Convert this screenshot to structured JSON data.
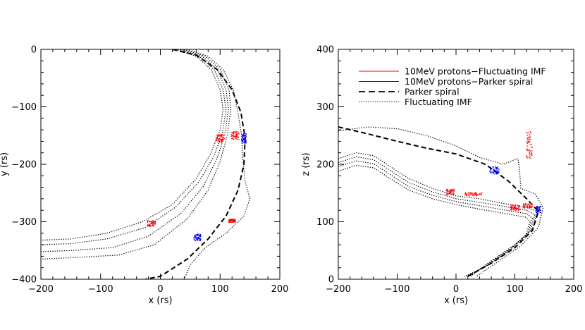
{
  "chart_data": [
    {
      "type": "line",
      "panel": "left",
      "xlabel": "x (rs)",
      "ylabel": "y (rs)",
      "xlim": [
        -200,
        200
      ],
      "ylim": [
        -400,
        0
      ],
      "xticks": [
        -200,
        -100,
        0,
        100,
        200
      ],
      "yticks": [
        -400,
        -300,
        -200,
        -100,
        0
      ],
      "xticks_text": [
        "−200",
        "−100",
        "0",
        "100",
        "200"
      ],
      "yticks_text": [
        "−400",
        "−300",
        "−200",
        "−100",
        "0"
      ],
      "series": [
        {
          "name": "Parker spiral",
          "style": "dashed",
          "color": "#000000",
          "points": [
            [
              20,
              0
            ],
            [
              60,
              -10
            ],
            [
              95,
              -35
            ],
            [
              120,
              -70
            ],
            [
              135,
              -110
            ],
            [
              142,
              -155
            ],
            [
              140,
              -200
            ],
            [
              130,
              -245
            ],
            [
              110,
              -290
            ],
            [
              80,
              -330
            ],
            [
              45,
              -365
            ],
            [
              0,
              -395
            ],
            [
              -25,
              -400
            ]
          ]
        },
        {
          "name": "Fluctuating IMF",
          "style": "dotted",
          "color": "#000000",
          "points": [
            [
              25,
              0
            ],
            [
              60,
              -12
            ],
            [
              85,
              -35
            ],
            [
              100,
              -70
            ],
            [
              105,
              -105
            ],
            [
              100,
              -140
            ],
            [
              85,
              -180
            ],
            [
              60,
              -225
            ],
            [
              20,
              -270
            ],
            [
              -30,
              -300
            ],
            [
              -90,
              -320
            ],
            [
              -150,
              -330
            ],
            [
              -200,
              -332
            ]
          ]
        },
        {
          "name": "Fluctuating IMF",
          "style": "dotted",
          "color": "#000000",
          "points": [
            [
              30,
              0
            ],
            [
              65,
              -12
            ],
            [
              90,
              -35
            ],
            [
              105,
              -70
            ],
            [
              110,
              -105
            ],
            [
              104,
              -145
            ],
            [
              90,
              -185
            ],
            [
              65,
              -230
            ],
            [
              25,
              -275
            ],
            [
              -25,
              -310
            ],
            [
              -90,
              -330
            ],
            [
              -150,
              -338
            ],
            [
              -200,
              -340
            ]
          ]
        },
        {
          "name": "Fluctuating IMF",
          "style": "dotted",
          "color": "#000000",
          "points": [
            [
              35,
              0
            ],
            [
              70,
              -12
            ],
            [
              95,
              -35
            ],
            [
              110,
              -70
            ],
            [
              114,
              -105
            ],
            [
              108,
              -148
            ],
            [
              95,
              -190
            ],
            [
              72,
              -238
            ],
            [
              35,
              -285
            ],
            [
              -20,
              -325
            ],
            [
              -80,
              -345
            ],
            [
              -150,
              -350
            ],
            [
              -200,
              -352
            ]
          ]
        },
        {
          "name": "Fluctuating IMF",
          "style": "dotted",
          "color": "#000000",
          "points": [
            [
              40,
              0
            ],
            [
              75,
              -12
            ],
            [
              100,
              -35
            ],
            [
              115,
              -70
            ],
            [
              118,
              -105
            ],
            [
              112,
              -150
            ],
            [
              100,
              -195
            ],
            [
              80,
              -245
            ],
            [
              45,
              -295
            ],
            [
              -10,
              -340
            ],
            [
              -70,
              -358
            ],
            [
              -140,
              -362
            ],
            [
              -200,
              -365
            ]
          ]
        },
        {
          "name": "Fluctuating IMF",
          "style": "dotted",
          "color": "#000000",
          "points": [
            [
              45,
              0
            ],
            [
              80,
              -12
            ],
            [
              105,
              -35
            ],
            [
              122,
              -70
            ],
            [
              130,
              -110
            ],
            [
              136,
              -150
            ],
            [
              138,
              -190
            ],
            [
              142,
              -230
            ],
            [
              150,
              -260
            ],
            [
              140,
              -290
            ],
            [
              110,
              -320
            ],
            [
              75,
              -345
            ],
            [
              50,
              -375
            ],
            [
              40,
              -400
            ]
          ]
        }
      ],
      "clusters": [
        {
          "name": "10MeV protons−Fluctuating IMF",
          "color": "#ff0000",
          "x": 100,
          "y": -155,
          "w": 14,
          "h": 14
        },
        {
          "name": "10MeV protons−Fluctuating IMF",
          "color": "#ff0000",
          "x": 125,
          "y": -150,
          "w": 14,
          "h": 14
        },
        {
          "name": "10MeV protons−Fluctuating IMF",
          "color": "#ff0000",
          "x": -15,
          "y": -303,
          "w": 14,
          "h": 10
        },
        {
          "name": "10MeV protons−Fluctuating IMF",
          "color": "#ff0000",
          "x": 120,
          "y": -298,
          "w": 12,
          "h": 6
        },
        {
          "name": "10MeV protons−Parker spiral",
          "color": "#0000ff",
          "x": 140,
          "y": -155,
          "w": 8,
          "h": 16
        },
        {
          "name": "10MeV protons−Parker spiral",
          "color": "#0000ff",
          "x": 62,
          "y": -327,
          "w": 12,
          "h": 12
        }
      ]
    },
    {
      "type": "line",
      "panel": "right",
      "xlabel": "x (rs)",
      "ylabel": "z (rs)",
      "xlim": [
        -200,
        200
      ],
      "ylim": [
        0,
        400
      ],
      "xticks": [
        -200,
        -100,
        0,
        100,
        200
      ],
      "yticks": [
        0,
        100,
        200,
        300,
        400
      ],
      "xticks_text": [
        "−200",
        "−100",
        "0",
        "100",
        "200"
      ],
      "yticks_text": [
        "0",
        "100",
        "200",
        "300",
        "400"
      ],
      "legend_position": "top-right",
      "legend": [
        {
          "label": "10MeV protons−Fluctuating IMF",
          "style": "solid",
          "color": "#ff0000"
        },
        {
          "label": "10MeV protons−Parker spiral",
          "style": "solid",
          "color": "#0000ff"
        },
        {
          "label": "Parker spiral",
          "style": "dashed",
          "color": "#000000"
        },
        {
          "label": "Fluctuating IMF",
          "style": "dotted",
          "color": "#000000"
        }
      ],
      "series": [
        {
          "name": "Parker spiral",
          "style": "dashed",
          "color": "#000000",
          "points": [
            [
              -200,
              265
            ],
            [
              -150,
              253
            ],
            [
              -100,
              240
            ],
            [
              -50,
              228
            ],
            [
              0,
              218
            ],
            [
              50,
              200
            ],
            [
              90,
              170
            ],
            [
              120,
              140
            ],
            [
              140,
              118
            ],
            [
              130,
              85
            ],
            [
              100,
              55
            ],
            [
              60,
              28
            ],
            [
              20,
              5
            ]
          ]
        },
        {
          "name": "Fluctuating IMF",
          "style": "dotted",
          "color": "#000000",
          "points": [
            [
              -200,
              258
            ],
            [
              -150,
              265
            ],
            [
              -100,
              262
            ],
            [
              -50,
              250
            ],
            [
              0,
              232
            ],
            [
              40,
              212
            ],
            [
              80,
              200
            ],
            [
              105,
              210
            ],
            [
              108,
              190
            ],
            [
              110,
              158
            ],
            [
              135,
              148
            ],
            [
              148,
              125
            ],
            [
              140,
              90
            ],
            [
              110,
              58
            ],
            [
              70,
              30
            ],
            [
              35,
              5
            ]
          ]
        },
        {
          "name": "Fluctuating IMF",
          "style": "dotted",
          "color": "#000000",
          "points": [
            [
              -200,
              210
            ],
            [
              -170,
              220
            ],
            [
              -140,
              215
            ],
            [
              -110,
              195
            ],
            [
              -80,
              175
            ],
            [
              -40,
              158
            ],
            [
              0,
              145
            ],
            [
              40,
              140
            ],
            [
              80,
              132
            ],
            [
              120,
              125
            ],
            [
              138,
              118
            ],
            [
              130,
              88
            ],
            [
              100,
              60
            ],
            [
              60,
              32
            ],
            [
              25,
              5
            ]
          ]
        },
        {
          "name": "Fluctuating IMF",
          "style": "dotted",
          "color": "#000000",
          "points": [
            [
              -200,
              203
            ],
            [
              -170,
              213
            ],
            [
              -140,
              208
            ],
            [
              -110,
              188
            ],
            [
              -80,
              168
            ],
            [
              -40,
              152
            ],
            [
              0,
              140
            ],
            [
              40,
              134
            ],
            [
              80,
              127
            ],
            [
              120,
              120
            ],
            [
              134,
              112
            ],
            [
              126,
              84
            ],
            [
              96,
              56
            ],
            [
              56,
              28
            ],
            [
              22,
              5
            ]
          ]
        },
        {
          "name": "Fluctuating IMF",
          "style": "dotted",
          "color": "#000000",
          "points": [
            [
              -200,
              196
            ],
            [
              -170,
              206
            ],
            [
              -140,
              201
            ],
            [
              -110,
              181
            ],
            [
              -80,
              161
            ],
            [
              -40,
              146
            ],
            [
              0,
              135
            ],
            [
              40,
              128
            ],
            [
              80,
              121
            ],
            [
              120,
              114
            ],
            [
              130,
              106
            ],
            [
              122,
              80
            ],
            [
              92,
              52
            ],
            [
              52,
              24
            ],
            [
              18,
              5
            ]
          ]
        },
        {
          "name": "Fluctuating IMF",
          "style": "dotted",
          "color": "#000000",
          "points": [
            [
              -200,
              188
            ],
            [
              -170,
              198
            ],
            [
              -140,
              194
            ],
            [
              -110,
              174
            ],
            [
              -80,
              155
            ],
            [
              -40,
              140
            ],
            [
              0,
              130
            ],
            [
              40,
              122
            ],
            [
              80,
              115
            ],
            [
              118,
              108
            ],
            [
              126,
              100
            ],
            [
              118,
              75
            ],
            [
              88,
              48
            ],
            [
              48,
              20
            ],
            [
              14,
              5
            ]
          ]
        }
      ],
      "clusters": [
        {
          "name": "10MeV protons−Fluctuating IMF",
          "color": "#ff0000",
          "x": 125,
          "y": 235,
          "w": 10,
          "h": 50
        },
        {
          "name": "10MeV protons−Fluctuating IMF",
          "color": "#ff0000",
          "x": -10,
          "y": 152,
          "w": 14,
          "h": 10
        },
        {
          "name": "10MeV protons−Fluctuating IMF",
          "color": "#ff0000",
          "x": 30,
          "y": 148,
          "w": 30,
          "h": 6
        },
        {
          "name": "10MeV protons−Fluctuating IMF",
          "color": "#ff0000",
          "x": 100,
          "y": 125,
          "w": 16,
          "h": 10
        },
        {
          "name": "10MeV protons−Fluctuating IMF",
          "color": "#ff0000",
          "x": 122,
          "y": 128,
          "w": 16,
          "h": 8
        },
        {
          "name": "10MeV protons−Parker spiral",
          "color": "#0000ff",
          "x": 65,
          "y": 190,
          "w": 16,
          "h": 14
        },
        {
          "name": "10MeV protons−Parker spiral",
          "color": "#0000ff",
          "x": 140,
          "y": 122,
          "w": 8,
          "h": 12
        }
      ]
    }
  ]
}
